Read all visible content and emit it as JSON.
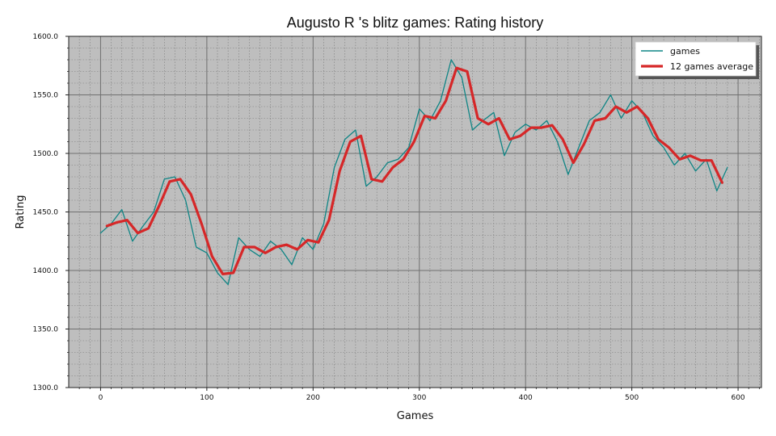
{
  "chart_data": {
    "type": "line",
    "title": "Augusto R 's blitz games: Rating history",
    "xlabel": "Games",
    "ylabel": "Rating",
    "xlim": [
      -30,
      622
    ],
    "ylim": [
      1300,
      1600
    ],
    "x_ticks": [
      0,
      100,
      200,
      300,
      400,
      500,
      600
    ],
    "x_tick_labels": [
      "0",
      "100",
      "200",
      "300",
      "400",
      "500",
      "600"
    ],
    "y_ticks": [
      1300,
      1350,
      1400,
      1450,
      1500,
      1550,
      1600
    ],
    "y_tick_labels": [
      "1300.0",
      "1350.0",
      "1400.0",
      "1450.0",
      "1500.0",
      "1550.0",
      "1600.0"
    ],
    "grid": true,
    "minor_grid": true,
    "legend_position": "top-right",
    "background_color": "#bebebe",
    "series": [
      {
        "name": "games",
        "color": "#0f8585",
        "x": [
          0,
          10,
          20,
          30,
          40,
          50,
          60,
          70,
          80,
          90,
          100,
          110,
          120,
          130,
          140,
          150,
          160,
          170,
          180,
          190,
          200,
          210,
          220,
          230,
          240,
          250,
          260,
          270,
          280,
          290,
          300,
          310,
          320,
          330,
          340,
          350,
          360,
          370,
          380,
          390,
          400,
          410,
          420,
          430,
          440,
          450,
          460,
          470,
          480,
          490,
          500,
          510,
          520,
          530,
          540,
          550,
          560,
          570,
          580,
          590
        ],
        "values": [
          1432,
          1440,
          1452,
          1425,
          1438,
          1450,
          1478,
          1480,
          1460,
          1420,
          1415,
          1398,
          1388,
          1428,
          1418,
          1412,
          1425,
          1418,
          1405,
          1428,
          1418,
          1440,
          1488,
          1512,
          1520,
          1472,
          1480,
          1492,
          1495,
          1505,
          1538,
          1528,
          1545,
          1580,
          1565,
          1520,
          1528,
          1535,
          1498,
          1518,
          1525,
          1520,
          1528,
          1510,
          1482,
          1505,
          1528,
          1535,
          1550,
          1530,
          1545,
          1535,
          1515,
          1505,
          1490,
          1500,
          1485,
          1495,
          1468,
          1488
        ]
      },
      {
        "name": "12 games average",
        "color": "#d62728",
        "x": [
          6,
          15,
          25,
          35,
          45,
          55,
          65,
          75,
          85,
          95,
          105,
          115,
          125,
          135,
          145,
          155,
          165,
          175,
          185,
          195,
          205,
          215,
          225,
          235,
          245,
          255,
          265,
          275,
          285,
          295,
          305,
          315,
          325,
          335,
          345,
          355,
          365,
          375,
          385,
          395,
          405,
          415,
          425,
          435,
          445,
          455,
          465,
          475,
          485,
          495,
          505,
          515,
          525,
          535,
          545,
          555,
          565,
          575,
          585
        ],
        "values": [
          1438,
          1441,
          1443,
          1432,
          1436,
          1455,
          1476,
          1478,
          1465,
          1440,
          1412,
          1397,
          1398,
          1420,
          1420,
          1415,
          1420,
          1422,
          1418,
          1426,
          1424,
          1443,
          1485,
          1510,
          1515,
          1478,
          1476,
          1488,
          1495,
          1510,
          1532,
          1530,
          1545,
          1573,
          1570,
          1530,
          1525,
          1530,
          1512,
          1515,
          1522,
          1522,
          1524,
          1512,
          1492,
          1508,
          1528,
          1530,
          1540,
          1535,
          1540,
          1530,
          1512,
          1505,
          1495,
          1498,
          1494,
          1494,
          1475
        ]
      }
    ]
  }
}
